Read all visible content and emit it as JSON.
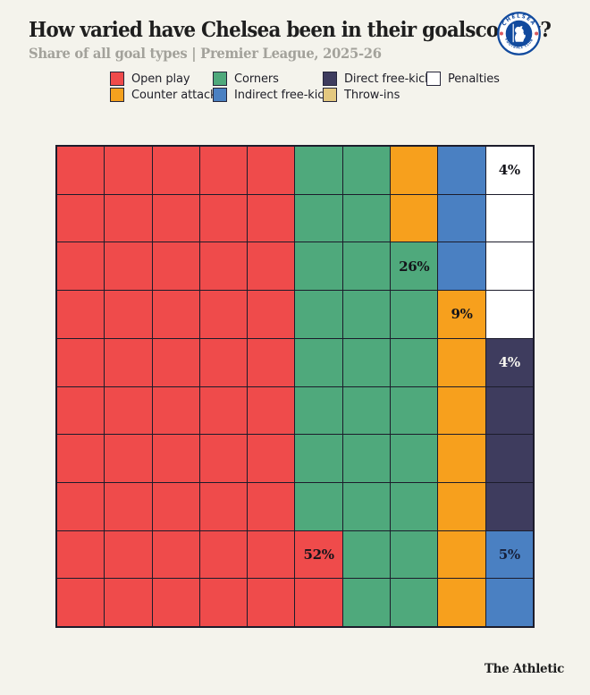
{
  "page": {
    "background_color": "#F4F3EC",
    "grid_line_color": "#1C1C2B"
  },
  "header": {
    "title": "How varied have Chelsea been in their goalscoring?",
    "subtitle": "Share of all goal types | Premier League, 2025-26",
    "badge": {
      "club": "Chelsea",
      "text_top": "CHELSEA",
      "text_bottom": "FOOTBALL CLUB",
      "blue": "#114A9E",
      "red_dot": "#D95A5F"
    }
  },
  "legend": {
    "items": [
      {
        "label": "Open play",
        "color": "#EF4B4B"
      },
      {
        "label": "Counter attacks",
        "color": "#F5A11E"
      },
      {
        "label": "Corners",
        "color": "#4FA97C"
      },
      {
        "label": "Indirect free-kicks",
        "color": "#4A80C2"
      },
      {
        "label": "Direct free-kicks",
        "color": "#3E3C5E"
      },
      {
        "label": "Throw-ins",
        "color": "#E3C87F"
      },
      {
        "label": "Penalties",
        "color": "#FFFFFF"
      }
    ]
  },
  "chart_data": {
    "type": "waffle",
    "title": "How varied have Chelsea been in their goalscoring?",
    "subtitle": "Share of all goal types | Premier League, 2025-26",
    "categories": [
      "Open play",
      "Counter attacks",
      "Corners",
      "Indirect free-kicks",
      "Direct free-kicks",
      "Throw-ins",
      "Penalties"
    ],
    "values": [
      52,
      9,
      26,
      5,
      4,
      0,
      4
    ],
    "grid_size": {
      "rows": 10,
      "cols": 10
    },
    "color_key": {
      "R": "#EF4B4B",
      "O": "#F7A01D",
      "G": "#4FA97C",
      "B": "#4A80C2",
      "N": "#3E3C5E",
      "T": "#E3C87F",
      "W": "#FFFFFF"
    },
    "grid_rows": [
      "RRRRRGGOBW",
      "RRRRRGGOBW",
      "RRRRRGGGBW",
      "RRRRRGGGOW",
      "RRRRRGGGON",
      "RRRRRGGGON",
      "RRRRRGGGON",
      "RRRRRGGGON",
      "RRRRRRGGOB",
      "RRRRRRGGOB"
    ],
    "cell_labels": [
      {
        "row": 1,
        "col": 10,
        "text": "4%",
        "text_color": "#14141A"
      },
      {
        "row": 3,
        "col": 8,
        "text": "26%",
        "text_color": "#14141A"
      },
      {
        "row": 4,
        "col": 9,
        "text": "9%",
        "text_color": "#14141A"
      },
      {
        "row": 5,
        "col": 10,
        "text": "4%",
        "text_color": "#F6F5EF"
      },
      {
        "row": 9,
        "col": 6,
        "text": "52%",
        "text_color": "#14141A"
      },
      {
        "row": 9,
        "col": 10,
        "text": "5%",
        "text_color": "#17203A"
      }
    ]
  },
  "footer": {
    "brand": "The Athletic"
  }
}
